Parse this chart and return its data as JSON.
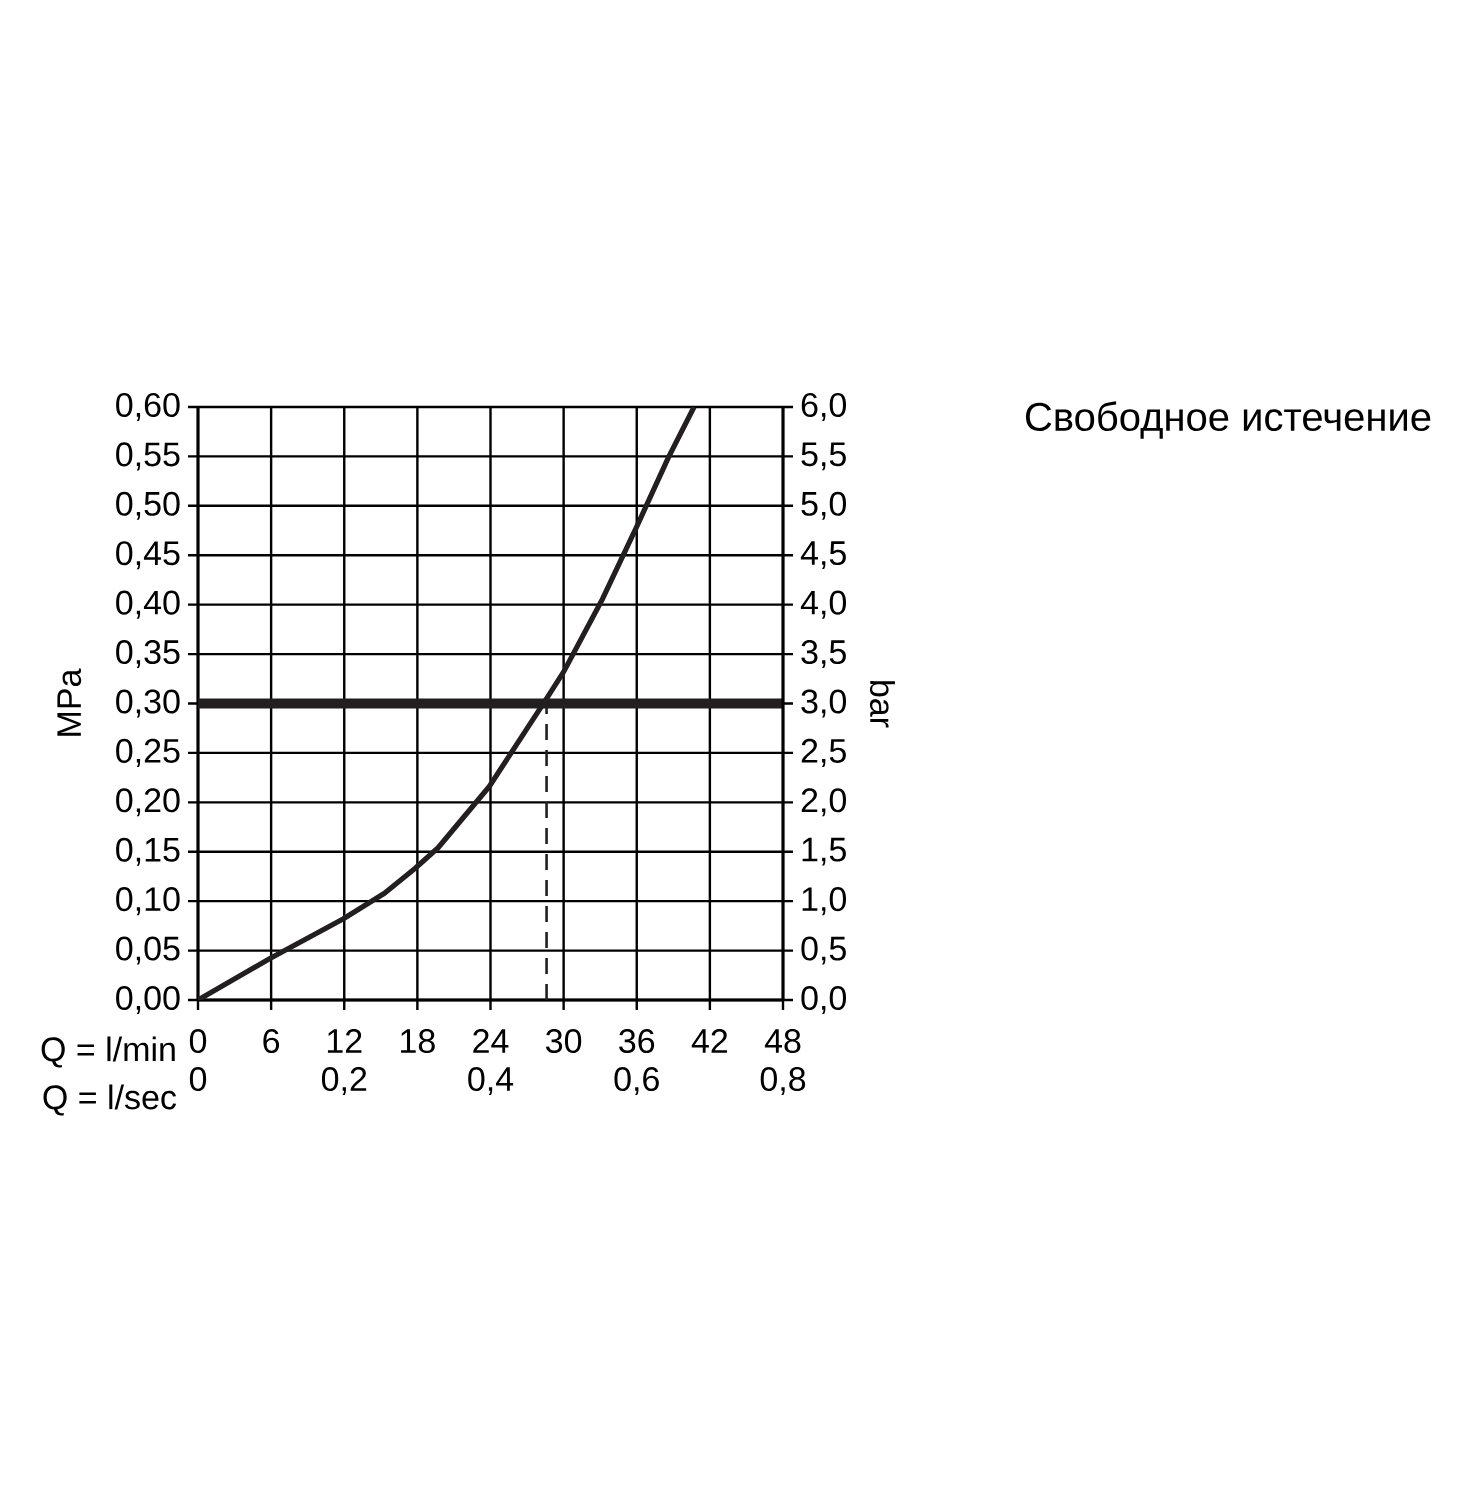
{
  "chart_data": {
    "type": "line",
    "title": "Свободное истечение",
    "xlabel": "Q = l/min",
    "x2label": "Q = l/sec",
    "ylabel": "MPa",
    "y2label": "bar",
    "xlim": [
      0,
      48
    ],
    "xticks": [
      0,
      6,
      12,
      18,
      24,
      30,
      36,
      42,
      48
    ],
    "x2lim": [
      0,
      0.8
    ],
    "x2ticks": [
      0,
      {
        "value": 0.2,
        "label": "0,2"
      },
      {
        "value": 0.4,
        "label": "0,4"
      },
      {
        "value": 0.6,
        "label": "0,6"
      },
      {
        "value": 0.8,
        "label": "0,8"
      }
    ],
    "ylim": [
      0,
      0.6
    ],
    "yticks": [
      {
        "value": 0,
        "label": "0,00"
      },
      {
        "value": 0.05,
        "label": "0,05"
      },
      {
        "value": 0.1,
        "label": "0,10"
      },
      {
        "value": 0.15,
        "label": "0,15"
      },
      {
        "value": 0.2,
        "label": "0,20"
      },
      {
        "value": 0.25,
        "label": "0,25"
      },
      {
        "value": 0.3,
        "label": "0,30"
      },
      {
        "value": 0.35,
        "label": "0,35"
      },
      {
        "value": 0.4,
        "label": "0,40"
      },
      {
        "value": 0.45,
        "label": "0,45"
      },
      {
        "value": 0.5,
        "label": "0,50"
      },
      {
        "value": 0.55,
        "label": "0,55"
      },
      {
        "value": 0.6,
        "label": "0,60"
      }
    ],
    "y2lim": [
      0,
      6
    ],
    "y2ticks": [
      {
        "value": 0,
        "label": "0,0"
      },
      {
        "value": 0.5,
        "label": "0,5"
      },
      {
        "value": 1,
        "label": "1,0"
      },
      {
        "value": 1.5,
        "label": "1,5"
      },
      {
        "value": 2,
        "label": "2,0"
      },
      {
        "value": 2.5,
        "label": "2,5"
      },
      {
        "value": 3,
        "label": "3,0"
      },
      {
        "value": 3.5,
        "label": "3,5"
      },
      {
        "value": 4,
        "label": "4,0"
      },
      {
        "value": 4.5,
        "label": "4,5"
      },
      {
        "value": 5,
        "label": "5,0"
      },
      {
        "value": 5.5,
        "label": "5,5"
      },
      {
        "value": 6,
        "label": "6,0"
      }
    ],
    "grid": true,
    "ref_lines": [
      {
        "axis": "y",
        "value": 0.3,
        "color": "#231f20",
        "line_style": "solid"
      },
      {
        "axis": "x",
        "value": 28.6,
        "color": "#231f20",
        "line_style": "dashed"
      }
    ],
    "series": [
      {
        "color": "#231f20",
        "x": [
          0,
          5.9,
          11.9,
          15.3,
          17.8,
          19.7,
          23.9,
          28.6,
          30,
          33.2,
          36,
          38.6,
          40.7
        ],
        "values": [
          0,
          0.042,
          0.082,
          0.108,
          0.133,
          0.154,
          0.216,
          0.305,
          0.332,
          0.406,
          0.479,
          0.549,
          0.6
        ]
      }
    ]
  }
}
